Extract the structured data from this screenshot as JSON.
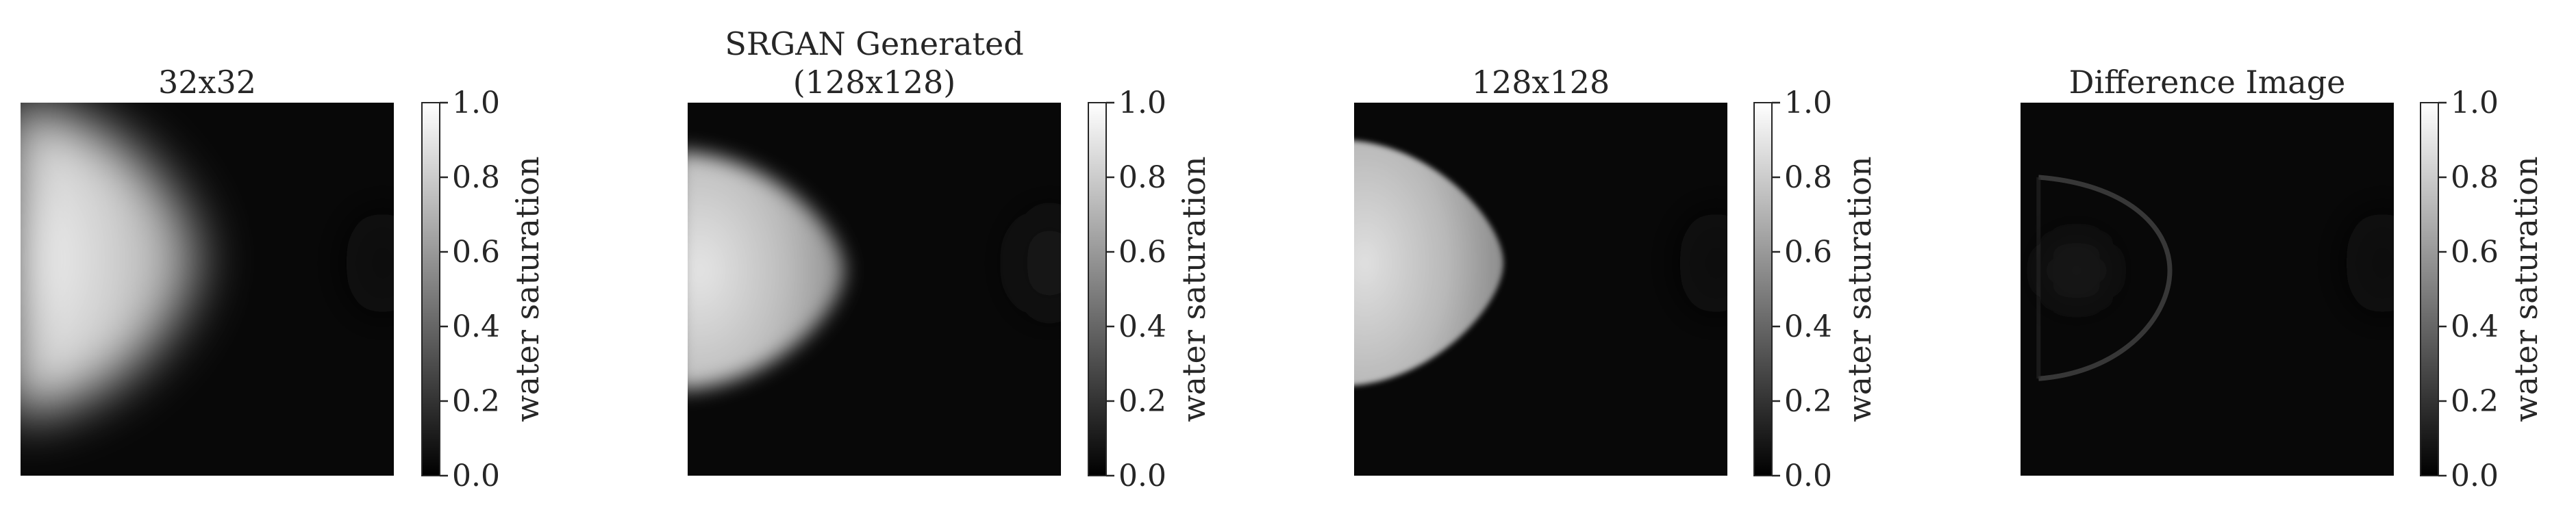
{
  "chart_data": [
    {
      "type": "heatmap",
      "title": "32x32",
      "colorbar": {
        "label": "water saturation",
        "ticks": [
          "0.0",
          "0.2",
          "0.4",
          "0.6",
          "0.8",
          "1.0"
        ],
        "range": [
          0,
          1
        ],
        "colormap": "gray"
      },
      "image": {
        "blob_center_y": 0.42,
        "blob_peak": 0.95,
        "blob_extent_x": 0.48,
        "blob_half_height": 0.42,
        "background": 0.03,
        "right_faint_blob": 0.06,
        "blur": "strong"
      }
    },
    {
      "type": "heatmap",
      "title": "SRGAN Generated\n(128x128)",
      "title_lines": [
        "SRGAN Generated",
        "(128x128)"
      ],
      "colorbar": {
        "label": "water saturation",
        "ticks": [
          "0.0",
          "0.2",
          "0.4",
          "0.6",
          "0.8",
          "1.0"
        ],
        "range": [
          0,
          1
        ],
        "colormap": "gray"
      },
      "image": {
        "blob_center_y": 0.45,
        "blob_peak": 0.9,
        "blob_extent_x": 0.42,
        "blob_half_height": 0.32,
        "background": 0.03,
        "right_faint_blob": 0.07,
        "blur": "moderate"
      }
    },
    {
      "type": "heatmap",
      "title": "128x128",
      "colorbar": {
        "label": "water saturation",
        "ticks": [
          "0.0",
          "0.2",
          "0.4",
          "0.6",
          "0.8",
          "1.0"
        ],
        "range": [
          0,
          1
        ],
        "colormap": "gray"
      },
      "image": {
        "blob_center_y": 0.43,
        "blob_peak": 0.88,
        "blob_extent_x": 0.4,
        "blob_half_height": 0.33,
        "background": 0.03,
        "right_faint_blob": 0.06,
        "blur": "sharp"
      }
    },
    {
      "type": "heatmap",
      "title": "Difference Image",
      "colorbar": {
        "label": "water saturation",
        "ticks": [
          "0.0",
          "0.2",
          "0.4",
          "0.6",
          "0.8",
          "1.0"
        ],
        "range": [
          0,
          1
        ],
        "colormap": "gray"
      },
      "image": {
        "ring_peak": 0.25,
        "background": 0.03,
        "right_faint_blob": 0.05
      }
    }
  ]
}
